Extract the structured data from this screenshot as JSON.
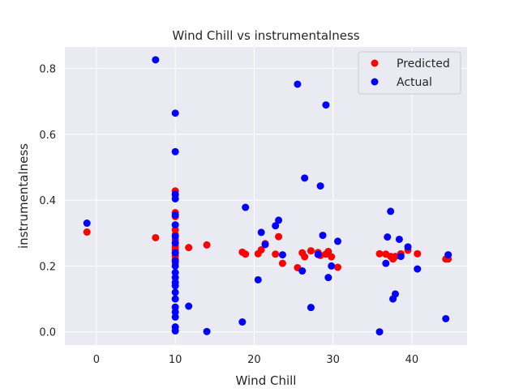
{
  "chart_data": {
    "type": "scatter",
    "title": "Wind Chill vs instrumentalness",
    "xlabel": "Wind Chill",
    "ylabel": "instrumentalness",
    "xlim": [
      -4,
      47
    ],
    "ylim": [
      -0.04,
      0.865
    ],
    "xticks": [
      0,
      10,
      20,
      30,
      40
    ],
    "yticks": [
      0.0,
      0.2,
      0.4,
      0.6,
      0.8
    ],
    "grid": true,
    "legend_position": "top-right",
    "colors": {
      "background": "#eaeaf2",
      "grid": "#ffffff",
      "predicted": "#ff0000",
      "actual": "#0000ff"
    },
    "series": [
      {
        "name": "Predicted",
        "color": "#ff0000",
        "points": [
          [
            -1.2,
            0.303
          ],
          [
            7.5,
            0.286
          ],
          [
            10,
            0.428
          ],
          [
            10,
            0.415
          ],
          [
            10,
            0.362
          ],
          [
            10,
            0.35
          ],
          [
            10,
            0.31
          ],
          [
            10,
            0.295
          ],
          [
            10,
            0.28
          ],
          [
            10,
            0.27
          ],
          [
            10,
            0.26
          ],
          [
            10,
            0.25
          ],
          [
            10,
            0.24
          ],
          [
            10,
            0.23
          ],
          [
            10,
            0.22
          ],
          [
            10,
            0.21
          ],
          [
            11.7,
            0.256
          ],
          [
            14,
            0.264
          ],
          [
            18.5,
            0.242
          ],
          [
            18.9,
            0.236
          ],
          [
            20.5,
            0.237
          ],
          [
            20.9,
            0.249
          ],
          [
            21.4,
            0.268
          ],
          [
            22.7,
            0.236
          ],
          [
            23.1,
            0.289
          ],
          [
            23.6,
            0.208
          ],
          [
            25.5,
            0.195
          ],
          [
            26.1,
            0.24
          ],
          [
            26.4,
            0.228
          ],
          [
            27.2,
            0.246
          ],
          [
            28.1,
            0.241
          ],
          [
            28.4,
            0.232
          ],
          [
            29.1,
            0.236
          ],
          [
            29.4,
            0.244
          ],
          [
            29.8,
            0.228
          ],
          [
            30.6,
            0.196
          ],
          [
            35.9,
            0.237
          ],
          [
            36.7,
            0.236
          ],
          [
            37.3,
            0.229
          ],
          [
            37.6,
            0.221
          ],
          [
            37.9,
            0.229
          ],
          [
            38.6,
            0.237
          ],
          [
            39.5,
            0.248
          ],
          [
            40.7,
            0.237
          ],
          [
            44.3,
            0.221
          ],
          [
            44.6,
            0.221
          ]
        ]
      },
      {
        "name": "Actual",
        "color": "#0000ff",
        "points": [
          [
            -1.2,
            0.33
          ],
          [
            7.5,
            0.826
          ],
          [
            10,
            0.664
          ],
          [
            10,
            0.547
          ],
          [
            10,
            0.418
          ],
          [
            10,
            0.404
          ],
          [
            10,
            0.355
          ],
          [
            10,
            0.325
          ],
          [
            10,
            0.29
          ],
          [
            10,
            0.27
          ],
          [
            10,
            0.24
          ],
          [
            10,
            0.215
          ],
          [
            10,
            0.2
          ],
          [
            10,
            0.18
          ],
          [
            10,
            0.165
          ],
          [
            10,
            0.15
          ],
          [
            10,
            0.14
          ],
          [
            10,
            0.12
          ],
          [
            10,
            0.1
          ],
          [
            10,
            0.075
          ],
          [
            10,
            0.06
          ],
          [
            10,
            0.045
          ],
          [
            10,
            0.015
          ],
          [
            10,
            0.003
          ],
          [
            11.7,
            0.078
          ],
          [
            14,
            0.001
          ],
          [
            18.5,
            0.03
          ],
          [
            18.9,
            0.378
          ],
          [
            20.5,
            0.158
          ],
          [
            20.9,
            0.302
          ],
          [
            21.4,
            0.265
          ],
          [
            22.7,
            0.322
          ],
          [
            23.1,
            0.339
          ],
          [
            23.6,
            0.234
          ],
          [
            25.5,
            0.752
          ],
          [
            26.1,
            0.185
          ],
          [
            26.4,
            0.467
          ],
          [
            27.2,
            0.074
          ],
          [
            28.1,
            0.235
          ],
          [
            28.4,
            0.443
          ],
          [
            28.7,
            0.293
          ],
          [
            29.1,
            0.689
          ],
          [
            29.4,
            0.165
          ],
          [
            29.8,
            0.2
          ],
          [
            30.6,
            0.275
          ],
          [
            35.9,
            0.0
          ],
          [
            36.7,
            0.208
          ],
          [
            36.9,
            0.288
          ],
          [
            37.3,
            0.366
          ],
          [
            37.6,
            0.1
          ],
          [
            37.9,
            0.115
          ],
          [
            38.4,
            0.281
          ],
          [
            38.6,
            0.229
          ],
          [
            39.5,
            0.258
          ],
          [
            40.7,
            0.191
          ],
          [
            44.3,
            0.04
          ],
          [
            44.6,
            0.234
          ]
        ]
      }
    ]
  }
}
